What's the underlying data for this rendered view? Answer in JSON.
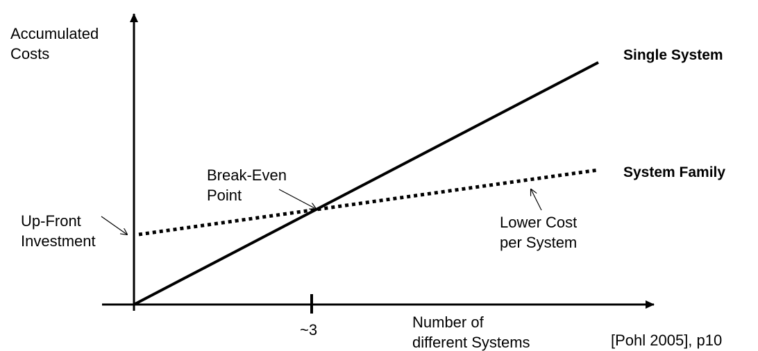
{
  "y_axis_label": "Accumulated\nCosts",
  "x_axis_label": "Number of\ndifferent Systems",
  "x_tick_label": "~3",
  "series": [
    {
      "name": "Single System",
      "style": "solid"
    },
    {
      "name": "System Family",
      "style": "dotted"
    }
  ],
  "annotations": {
    "up_front": "Up-Front\nInvestment",
    "break_even": "Break-Even\nPoint",
    "lower_cost": "Lower Cost\nper System"
  },
  "citation": "[Pohl 2005], p10",
  "colors": {
    "ink": "#000000",
    "background": "#ffffff"
  }
}
